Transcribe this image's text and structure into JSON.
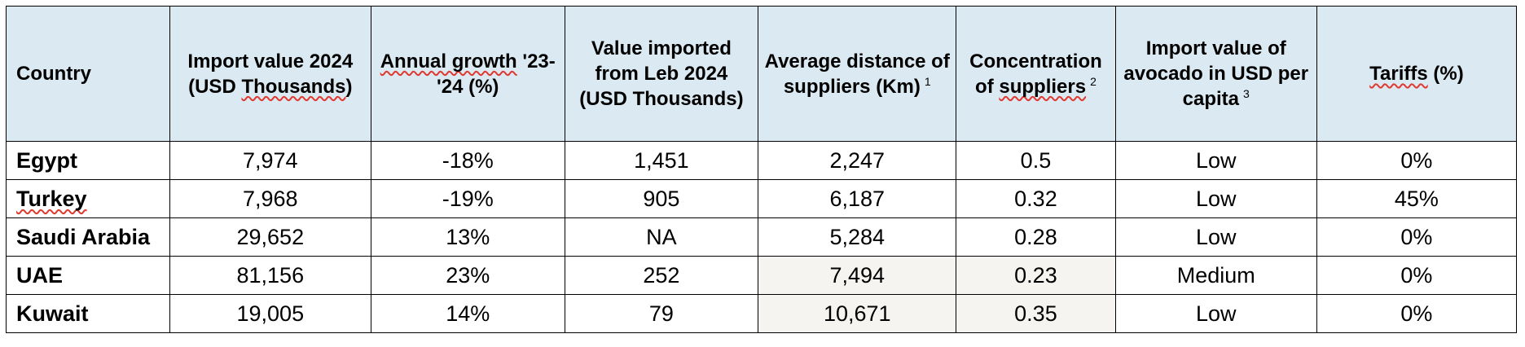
{
  "columns": [
    {
      "pre": "",
      "sq": "",
      "post": "Country",
      "note": ""
    },
    {
      "pre": "Import value 2024 (USD ",
      "sq": "Thousands",
      "post": ")",
      "note": ""
    },
    {
      "pre": "",
      "sq": "Annual growth",
      "post": " '23-'24 (%)",
      "note": ""
    },
    {
      "pre": "Value imported from Leb 2024 (USD Thousands)",
      "sq": "",
      "post": "",
      "note": ""
    },
    {
      "pre": "Average distance of suppliers (Km)",
      "sq": "",
      "post": "",
      "note": "1"
    },
    {
      "pre": "Concentration of ",
      "sq": "suppliers",
      "post": "",
      "note": "2"
    },
    {
      "pre": "Import value of avocado in USD per capita",
      "sq": "",
      "post": "",
      "note": "3"
    },
    {
      "pre": "",
      "sq": "Tariffs",
      "post": " (%)",
      "note": ""
    }
  ],
  "rows": [
    {
      "country": "Egypt",
      "import_value": "7,974",
      "growth": "-18%",
      "from_leb": "1,451",
      "distance": "2,247",
      "concentration": "0.5",
      "per_capita": "Low",
      "tariffs": "0%"
    },
    {
      "country": "Turkey",
      "import_value": "7,968",
      "growth": "-19%",
      "from_leb": "905",
      "distance": "6,187",
      "concentration": "0.32",
      "per_capita": "Low",
      "tariffs": "45%"
    },
    {
      "country": "Saudi Arabia",
      "import_value": "29,652",
      "growth": "13%",
      "from_leb": "NA",
      "distance": "5,284",
      "concentration": "0.28",
      "per_capita": "Low",
      "tariffs": "0%"
    },
    {
      "country": "UAE",
      "import_value": "81,156",
      "growth": "23%",
      "from_leb": "252",
      "distance": "7,494",
      "concentration": "0.23",
      "per_capita": "Medium",
      "tariffs": "0%"
    },
    {
      "country": "Kuwait",
      "import_value": "19,005",
      "growth": "14%",
      "from_leb": "79",
      "distance": "10,671",
      "concentration": "0.35",
      "per_capita": "Low",
      "tariffs": "0%"
    }
  ],
  "colors": {
    "header_bg": "#dbe9f2",
    "shade_bg": "#f6f4f1",
    "squiggle": "#e0392f"
  }
}
